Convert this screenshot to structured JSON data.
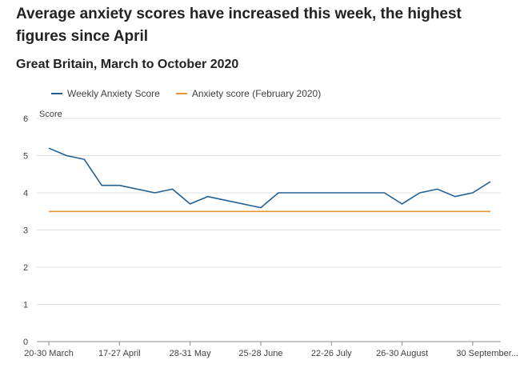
{
  "title": "Average anxiety scores have increased this week, the highest figures since April",
  "subtitle": "Great Britain, March to October 2020",
  "chart_data": {
    "type": "line",
    "ylabel": "Score",
    "ylim": [
      0,
      6
    ],
    "yticks": [
      0,
      1,
      2,
      3,
      4,
      5,
      6
    ],
    "grid": true,
    "legend_position": "top-left",
    "x": [
      "20-30 March",
      "",
      "",
      "",
      "17-27 April",
      "",
      "",
      "",
      "28-31 May",
      "",
      "",
      "",
      "25-28 June",
      "",
      "",
      "",
      "22-26 July",
      "",
      "",
      "",
      "26-30 August",
      "",
      "",
      "",
      "30 September..."
    ],
    "xtick_labels": [
      {
        "index": 0,
        "label": "20-30 March"
      },
      {
        "index": 4,
        "label": "17-27 April"
      },
      {
        "index": 8,
        "label": "28-31 May"
      },
      {
        "index": 12,
        "label": "25-28 June"
      },
      {
        "index": 16,
        "label": "22-26 July"
      },
      {
        "index": 20,
        "label": "26-30 August"
      },
      {
        "index": 24,
        "label": "30 September..."
      }
    ],
    "series": [
      {
        "name": "Weekly Anxiety Score",
        "color": "#206095",
        "points": [
          [
            0,
            5.2
          ],
          [
            1,
            5.0
          ],
          [
            2,
            4.9
          ],
          [
            3,
            4.2
          ],
          [
            4,
            4.2
          ],
          [
            6,
            4.0
          ],
          [
            7,
            4.1
          ],
          [
            8,
            3.7
          ],
          [
            9,
            3.9
          ],
          [
            12,
            3.6
          ],
          [
            13,
            4.0
          ],
          [
            19,
            4.0
          ],
          [
            20,
            3.7
          ],
          [
            21,
            4.0
          ],
          [
            22,
            4.1
          ],
          [
            23,
            3.9
          ],
          [
            24,
            4.0
          ],
          [
            25,
            4.3
          ]
        ]
      },
      {
        "name": "Anxiety score (February 2020)",
        "color": "#e8953a",
        "points": [
          [
            0,
            3.5
          ],
          [
            25,
            3.5
          ]
        ]
      }
    ]
  }
}
